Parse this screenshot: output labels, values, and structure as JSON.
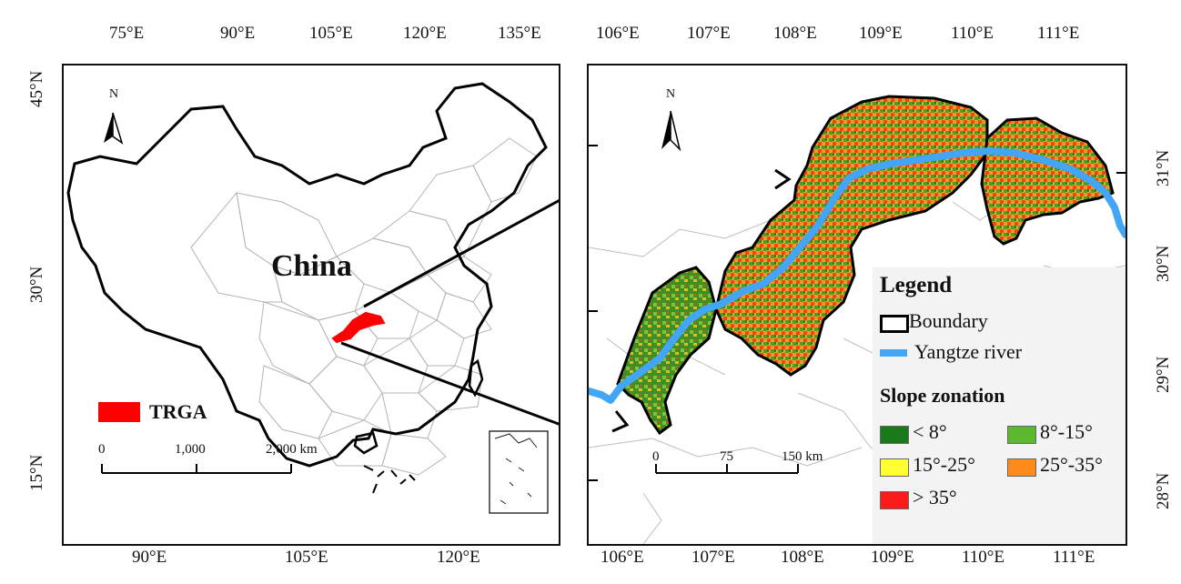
{
  "left_map": {
    "top_lon_ticks": [
      "75°E",
      "90°E",
      "105°E",
      "120°E",
      "135°E"
    ],
    "bottom_lon_ticks": [
      "90°E",
      "105°E",
      "120°E"
    ],
    "left_lat_ticks": [
      "45°N",
      "30°N",
      "15°N"
    ],
    "country_label": "China",
    "north_label": "N",
    "highlight_legend": "TRGA",
    "scale_bar": {
      "labels": [
        "0",
        "1,000",
        "2,000 km"
      ]
    },
    "colors": {
      "highlight": "#ff0000",
      "boundary": "#000000",
      "provinces": "#b4b4b4"
    }
  },
  "right_map": {
    "top_lon_ticks": [
      "106°E",
      "107°E",
      "108°E",
      "109°E",
      "110°E",
      "111°E"
    ],
    "bottom_lon_ticks": [
      "106°E",
      "107°E",
      "108°E",
      "109°E",
      "110°E",
      "111°E"
    ],
    "right_lat_ticks": [
      "31°N",
      "30°N",
      "29°N",
      "28°N"
    ],
    "north_label": "N",
    "scale_bar": {
      "labels": [
        "0",
        "75",
        "150 km"
      ]
    },
    "legend": {
      "title": "Legend",
      "items": [
        {
          "label": "Boundary",
          "symbol": "outline",
          "color": "#000000"
        },
        {
          "label": "Yangtze river",
          "symbol": "line",
          "color": "#42a5f5"
        }
      ],
      "slope_title": "Slope zonation",
      "slope_classes": [
        {
          "label": "< 8°",
          "color": "#1a7a1a"
        },
        {
          "label": "8°-15°",
          "color": "#5cb82e"
        },
        {
          "label": "15°-25°",
          "color": "#ffff33"
        },
        {
          "label": "25°-35°",
          "color": "#ff8c1a"
        },
        {
          "label": "> 35°",
          "color": "#ff1a1a"
        }
      ]
    }
  }
}
